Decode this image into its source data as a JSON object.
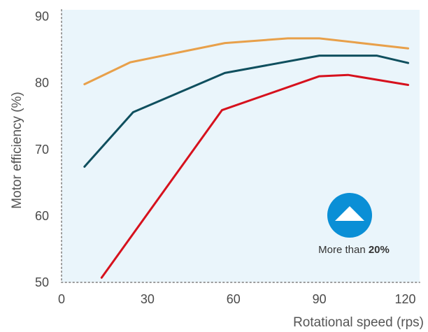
{
  "chart_data": {
    "type": "line",
    "title": "",
    "xlabel": "Rotational speed (rps)",
    "ylabel": "Motor efficiency (%)",
    "xlim": [
      0,
      125
    ],
    "ylim": [
      50,
      91
    ],
    "x_ticks": [
      0,
      30,
      60,
      90,
      120
    ],
    "x_tick_labels": [
      "0",
      "30",
      "60",
      "90",
      "120"
    ],
    "y_ticks": [
      50,
      60,
      70,
      80,
      90
    ],
    "y_tick_labels": [
      "50",
      "60",
      "70",
      "80",
      "90"
    ],
    "grid": false,
    "background": "#eaf5fb",
    "axis_style": "dotted",
    "series": [
      {
        "color": "#e8a04a",
        "points": [
          [
            8,
            79.8
          ],
          [
            24,
            83.1
          ],
          [
            57,
            86.0
          ],
          [
            79,
            86.7
          ],
          [
            90,
            86.7
          ],
          [
            121,
            85.2
          ]
        ]
      },
      {
        "color": "#0f4f5e",
        "points": [
          [
            8,
            67.4
          ],
          [
            25,
            75.6
          ],
          [
            57,
            81.5
          ],
          [
            90,
            84.1
          ],
          [
            110,
            84.1
          ],
          [
            121,
            83.0
          ]
        ]
      },
      {
        "color": "#d6111d",
        "points": [
          [
            14,
            50.7
          ],
          [
            56,
            75.9
          ],
          [
            90,
            81.0
          ],
          [
            100,
            81.2
          ],
          [
            121,
            79.7
          ]
        ]
      }
    ],
    "annotation": {
      "icon": "up-triangle-icon",
      "icon_color": "#0a8fd6",
      "text_prefix": "More than ",
      "text_bold": "20%"
    }
  }
}
